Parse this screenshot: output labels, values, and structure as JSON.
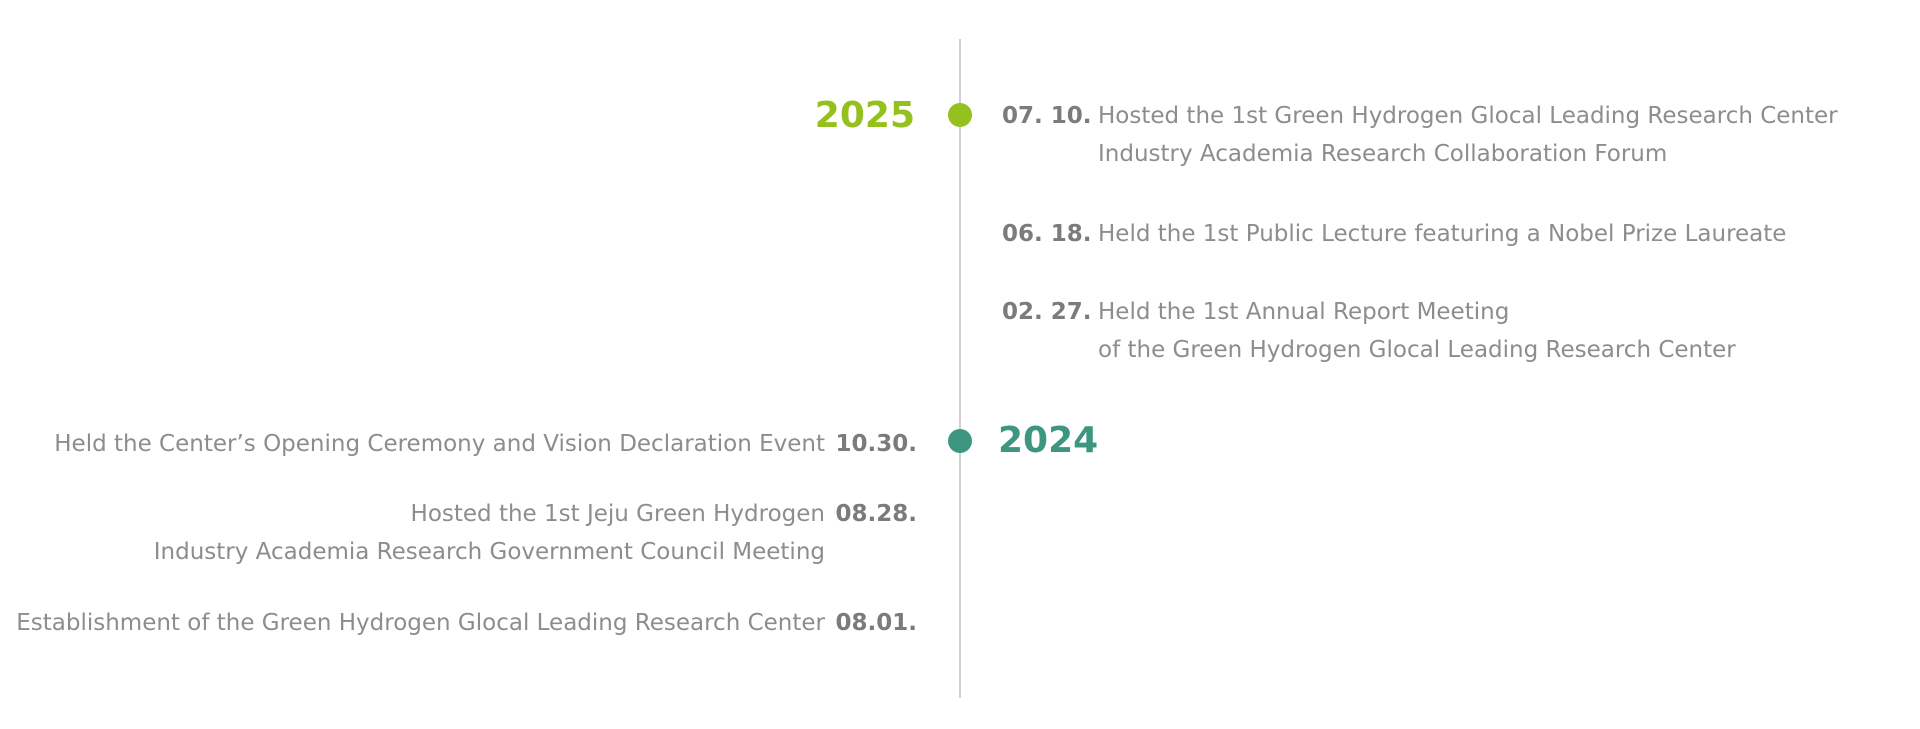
{
  "timeline": {
    "years": [
      {
        "year": "2025",
        "entries": [
          {
            "date": "07. 10.",
            "lines": [
              "Hosted the 1st Green Hydrogen Glocal Leading Research Center",
              "Industry Academia Research Collaboration Forum"
            ]
          },
          {
            "date": "06. 18.",
            "lines": [
              "Held the 1st Public Lecture featuring a Nobel Prize Laureate"
            ]
          },
          {
            "date": "02. 27.",
            "lines": [
              "Held the 1st Annual Report Meeting",
              "of the Green Hydrogen Glocal Leading Research Center"
            ]
          }
        ]
      },
      {
        "year": "2024",
        "entries": [
          {
            "date": "10.30.",
            "lines": [
              "Held the Center’s Opening Ceremony and Vision Declaration Event"
            ]
          },
          {
            "date": "08.28.",
            "lines": [
              "Hosted the 1st Jeju Green Hydrogen",
              "Industry Academia Research Government Council Meeting"
            ]
          },
          {
            "date": "08.01.",
            "lines": [
              "Establishment of the Green Hydrogen Glocal Leading Research Center"
            ]
          }
        ]
      }
    ]
  }
}
